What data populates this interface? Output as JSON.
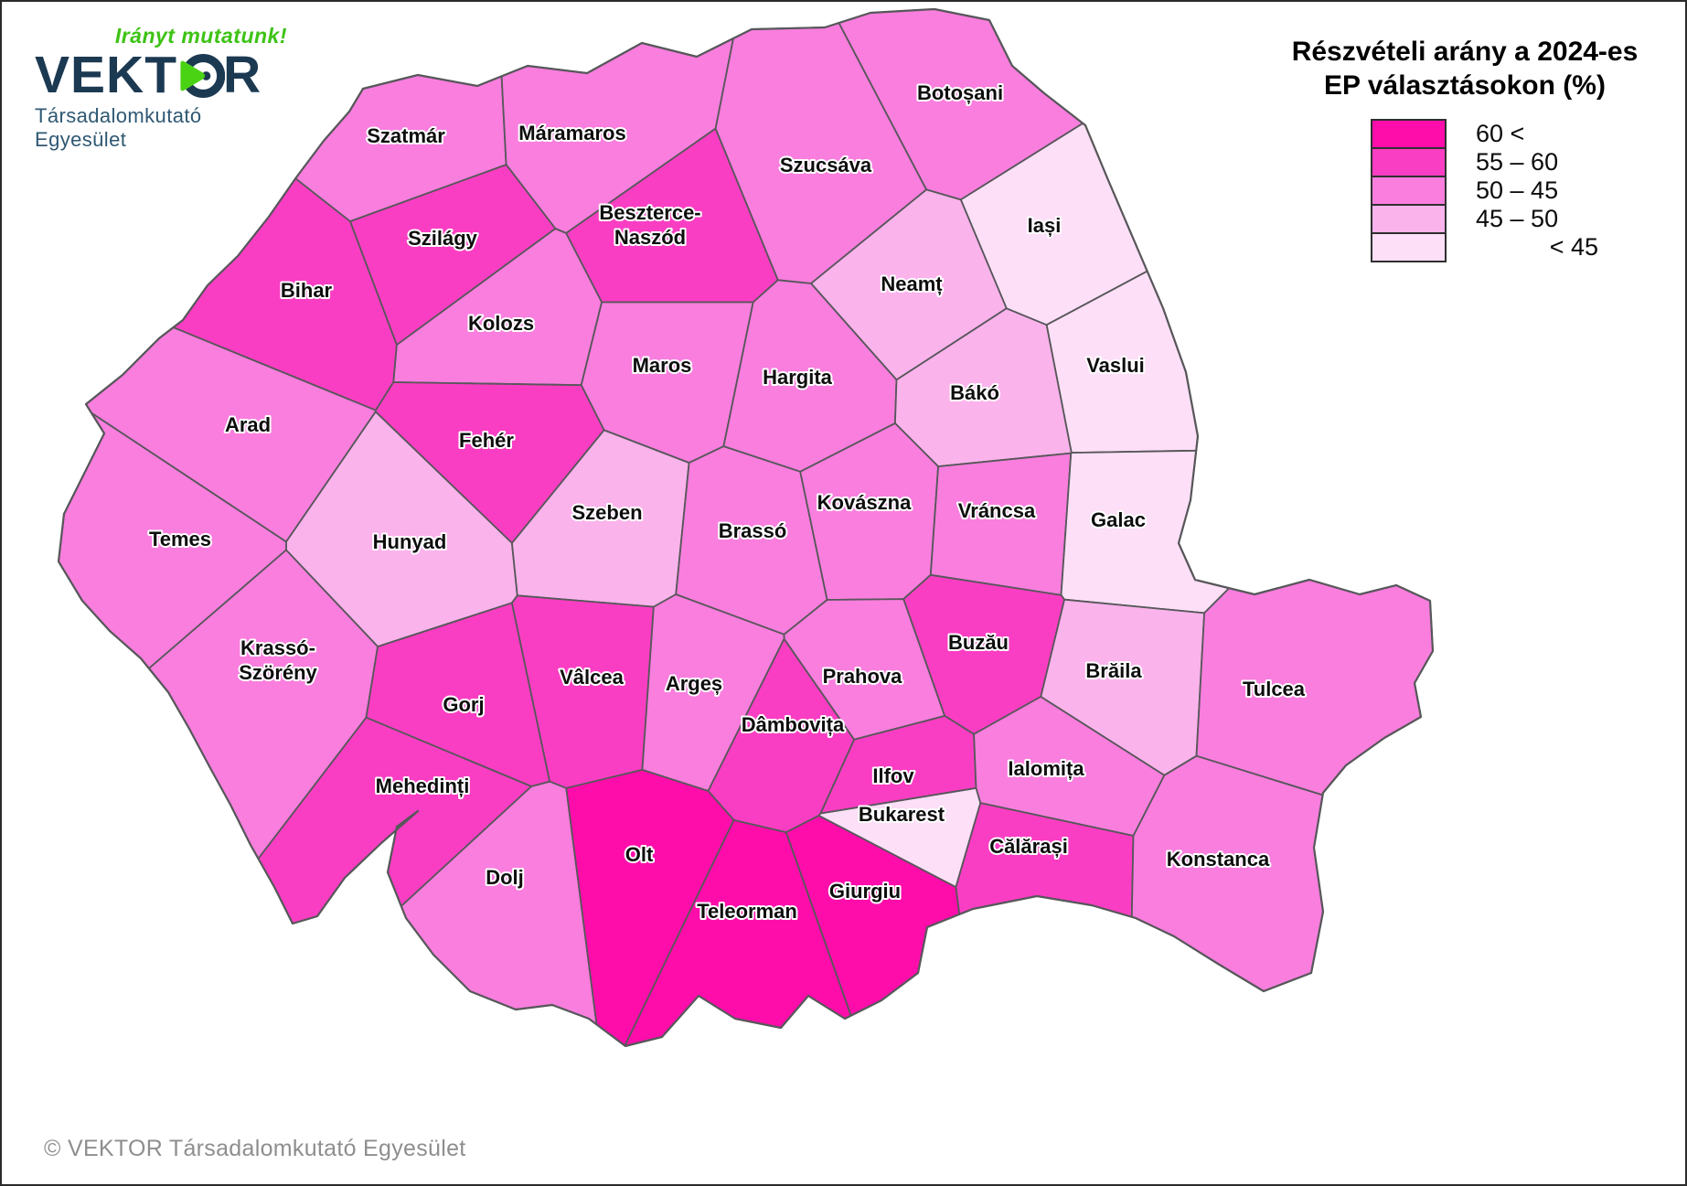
{
  "logo": {
    "tagline": "Irányt mutatunk!",
    "brand_pre": "VEKT",
    "brand_post": "R",
    "subtitle": "Társadalomkutató Egyesület",
    "tagline_color": "#3dc314",
    "brand_color": "#1c3952",
    "subtitle_color": "#2f5873",
    "play_color": "#4ad313"
  },
  "legend": {
    "title_line1": "Részvételi arány a 2024-es",
    "title_line2": "EP választásokon (%)",
    "items": [
      {
        "label": "60 <",
        "color": "#ff0dab"
      },
      {
        "label": "55 – 60",
        "color": "#fa3ec3"
      },
      {
        "label": "50 – 45",
        "color": "#f97ede"
      },
      {
        "label": "45 – 50",
        "color": "#fbb3ec"
      },
      {
        "label": "< 45",
        "color": "#fddff7"
      }
    ]
  },
  "footer": {
    "copyright": "© VEKTOR Társadalomkutató Egyesület"
  },
  "map": {
    "stroke_color": "#57575a",
    "counties": [
      {
        "name": "Szatmár",
        "cls": 3,
        "seed": [
          452,
          152
        ],
        "label": [
          442,
          146
        ]
      },
      {
        "name": "Máramaros",
        "cls": 3,
        "seed": [
          648,
          142
        ],
        "label": [
          624,
          143
        ]
      },
      {
        "name": "Beszterce-Naszód",
        "cls": 2,
        "seed": [
          732,
          262
        ],
        "label": [
          709,
          243
        ],
        "label_lines": [
          "Beszterce-",
          "Naszód"
        ]
      },
      {
        "name": "Botoșani",
        "cls": 3,
        "seed": [
          1062,
          108
        ],
        "label": [
          1048,
          99
        ]
      },
      {
        "name": "Szucsáva",
        "cls": 3,
        "seed": [
          902,
          192
        ],
        "label": [
          901,
          178
        ]
      },
      {
        "name": "Iași",
        "cls": 5,
        "seed": [
          1152,
          252
        ],
        "label": [
          1140,
          244
        ]
      },
      {
        "name": "Neamț",
        "cls": 4,
        "seed": [
          1002,
          315
        ],
        "label": [
          995,
          308
        ]
      },
      {
        "name": "Vaslui",
        "cls": 5,
        "seed": [
          1232,
          402
        ],
        "label": [
          1218,
          397
        ]
      },
      {
        "name": "Szilágy",
        "cls": 2,
        "seed": [
          492,
          262
        ],
        "label": [
          482,
          258
        ]
      },
      {
        "name": "Bihar",
        "cls": 2,
        "seed": [
          312,
          330
        ],
        "label": [
          333,
          315
        ]
      },
      {
        "name": "Kolozs",
        "cls": 3,
        "seed": [
          558,
          352
        ],
        "label": [
          546,
          351
        ]
      },
      {
        "name": "Maros",
        "cls": 3,
        "seed": [
          732,
          395
        ],
        "label": [
          722,
          397
        ]
      },
      {
        "name": "Hargita",
        "cls": 3,
        "seed": [
          878,
          425
        ],
        "label": [
          870,
          410
        ]
      },
      {
        "name": "Bákó",
        "cls": 4,
        "seed": [
          1078,
          432
        ],
        "label": [
          1064,
          427
        ]
      },
      {
        "name": "Arad",
        "cls": 3,
        "seed": [
          258,
          462
        ],
        "label": [
          269,
          462
        ]
      },
      {
        "name": "Fehér",
        "cls": 2,
        "seed": [
          556,
          484
        ],
        "label": [
          530,
          479
        ]
      },
      {
        "name": "Hunyad",
        "cls": 4,
        "seed": [
          450,
          594
        ],
        "label": [
          446,
          590
        ]
      },
      {
        "name": "Szeben",
        "cls": 4,
        "seed": [
          664,
          572
        ],
        "label": [
          662,
          558
        ]
      },
      {
        "name": "Brassó",
        "cls": 3,
        "seed": [
          824,
          588
        ],
        "label": [
          821,
          578
        ]
      },
      {
        "name": "Kovászna",
        "cls": 3,
        "seed": [
          948,
          562
        ],
        "label": [
          943,
          547
        ]
      },
      {
        "name": "Vráncsa",
        "cls": 3,
        "seed": [
          1092,
          572
        ],
        "label": [
          1088,
          556
        ]
      },
      {
        "name": "Galac",
        "cls": 5,
        "seed": [
          1235,
          582
        ],
        "label": [
          1221,
          566
        ]
      },
      {
        "name": "Temes",
        "cls": 3,
        "seed": [
          172,
          592
        ],
        "label": [
          195,
          587
        ]
      },
      {
        "name": "Krassó-Szörény",
        "cls": 3,
        "seed": [
          298,
          738
        ],
        "label": [
          302,
          719
        ],
        "label_lines": [
          "Krassó-",
          "Szörény"
        ]
      },
      {
        "name": "Gorj",
        "cls": 2,
        "seed": [
          508,
          772
        ],
        "label": [
          505,
          768
        ]
      },
      {
        "name": "Vâlcea",
        "cls": 2,
        "seed": [
          650,
          742
        ],
        "label": [
          645,
          738
        ]
      },
      {
        "name": "Argeș",
        "cls": 3,
        "seed": [
          764,
          750
        ],
        "label": [
          757,
          745
        ]
      },
      {
        "name": "Dâmbovița",
        "cls": 2,
        "seed": [
          868,
          802
        ],
        "label": [
          865,
          790
        ]
      },
      {
        "name": "Prahova",
        "cls": 3,
        "seed": [
          950,
          745
        ],
        "label": [
          941,
          737
        ]
      },
      {
        "name": "Buzău",
        "cls": 2,
        "seed": [
          1072,
          702
        ],
        "label": [
          1068,
          700
        ]
      },
      {
        "name": "Brăila",
        "cls": 4,
        "seed": [
          1220,
          738
        ],
        "label": [
          1216,
          731
        ]
      },
      {
        "name": "Tulcea",
        "cls": 3,
        "seed": [
          1402,
          748
        ],
        "label": [
          1391,
          751
        ]
      },
      {
        "name": "Mehedinți",
        "cls": 2,
        "seed": [
          468,
          868
        ],
        "label": [
          460,
          857
        ]
      },
      {
        "name": "Dolj",
        "cls": 3,
        "seed": [
          560,
          968
        ],
        "label": [
          550,
          957
        ]
      },
      {
        "name": "Olt",
        "cls": 1,
        "seed": [
          700,
          950
        ],
        "label": [
          697,
          932
        ]
      },
      {
        "name": "Teleorman",
        "cls": 1,
        "seed": [
          820,
          1008
        ],
        "label": [
          815,
          994
        ]
      },
      {
        "name": "Giurgiu",
        "cls": 1,
        "seed": [
          950,
          962
        ],
        "label": [
          944,
          972
        ]
      },
      {
        "name": "Bukarest",
        "cls": 5,
        "seed": [
          985,
          895
        ],
        "label": [
          984,
          888
        ]
      },
      {
        "name": "Ilfov",
        "cls": 2,
        "seed": [
          978,
          852
        ],
        "label": [
          975,
          846
        ]
      },
      {
        "name": "Ialomița",
        "cls": 3,
        "seed": [
          1152,
          845
        ],
        "label": [
          1142,
          838
        ]
      },
      {
        "name": "Călărași",
        "cls": 2,
        "seed": [
          1132,
          938
        ],
        "label": [
          1123,
          923
        ]
      },
      {
        "name": "Konstanca",
        "cls": 3,
        "seed": [
          1342,
          942
        ],
        "label": [
          1330,
          937
        ]
      }
    ]
  }
}
